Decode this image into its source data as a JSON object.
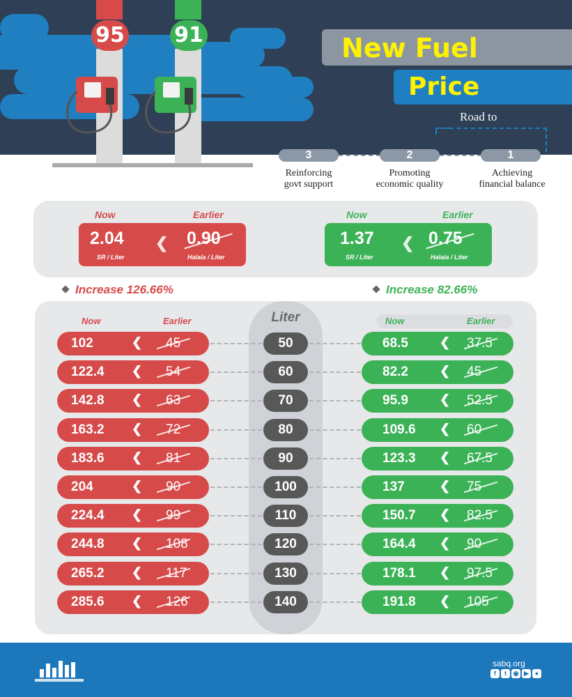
{
  "header": {
    "pumps": [
      {
        "grade": "95",
        "color": "#d64a4a"
      },
      {
        "grade": "91",
        "color": "#3cb257"
      }
    ],
    "title_line1": "New Fuel",
    "title_line2": "Price",
    "road_to": "Road to",
    "steps": [
      {
        "number": "3",
        "label_line1": "Reinforcing",
        "label_line2": "govt support"
      },
      {
        "number": "2",
        "label_line1": "Promoting",
        "label_line2": "economic quality"
      },
      {
        "number": "1",
        "label_line1": "Achieving",
        "label_line2": "financial balance"
      }
    ]
  },
  "summary": {
    "red": {
      "now_label": "Now",
      "earlier_label": "Earlier",
      "now": "2.04",
      "earlier": "0.90",
      "now_unit": "SR / Liter",
      "earlier_unit": "Halala / Liter",
      "increase": "Increase 126.66%"
    },
    "green": {
      "now_label": "Now",
      "earlier_label": "Earlier",
      "now": "1.37",
      "earlier": "0.75",
      "now_unit": "SR / Liter",
      "earlier_unit": "Halala / Liter",
      "increase": "Increase 82.66%"
    }
  },
  "table": {
    "liter_label": "Liter",
    "red_now_label": "Now",
    "red_earlier_label": "Earlier",
    "green_now_label": "Now",
    "green_earlier_label": "Earlier",
    "rows": [
      {
        "liter": "50",
        "red_now": "102",
        "red_earlier": "45",
        "green_now": "68.5",
        "green_earlier": "37.5"
      },
      {
        "liter": "60",
        "red_now": "122.4",
        "red_earlier": "54",
        "green_now": "82.2",
        "green_earlier": "45"
      },
      {
        "liter": "70",
        "red_now": "142.8",
        "red_earlier": "63",
        "green_now": "95.9",
        "green_earlier": "52.5"
      },
      {
        "liter": "80",
        "red_now": "163.2",
        "red_earlier": "72",
        "green_now": "109.6",
        "green_earlier": "60"
      },
      {
        "liter": "90",
        "red_now": "183.6",
        "red_earlier": "81",
        "green_now": "123.3",
        "green_earlier": "67.5"
      },
      {
        "liter": "100",
        "red_now": "204",
        "red_earlier": "90",
        "green_now": "137",
        "green_earlier": "75"
      },
      {
        "liter": "110",
        "red_now": "224.4",
        "red_earlier": "99",
        "green_now": "150.7",
        "green_earlier": "82.5"
      },
      {
        "liter": "120",
        "red_now": "244.8",
        "red_earlier": "108",
        "green_now": "164.4",
        "green_earlier": "90"
      },
      {
        "liter": "130",
        "red_now": "265.2",
        "red_earlier": "117",
        "green_now": "178.1",
        "green_earlier": "97.5"
      },
      {
        "liter": "140",
        "red_now": "285.6",
        "red_earlier": "126",
        "green_now": "191.8",
        "green_earlier": "105"
      }
    ]
  },
  "colors": {
    "red": "#d64a4a",
    "green": "#3cb257",
    "navy": "#2e3f56",
    "blue": "#1f7fc1",
    "title_yellow": "#fff200"
  },
  "footer": {
    "site": "sabq.org",
    "social_icons": [
      "facebook-icon",
      "twitter-icon",
      "instagram-icon",
      "youtube-icon",
      "snapchat-icon"
    ]
  }
}
